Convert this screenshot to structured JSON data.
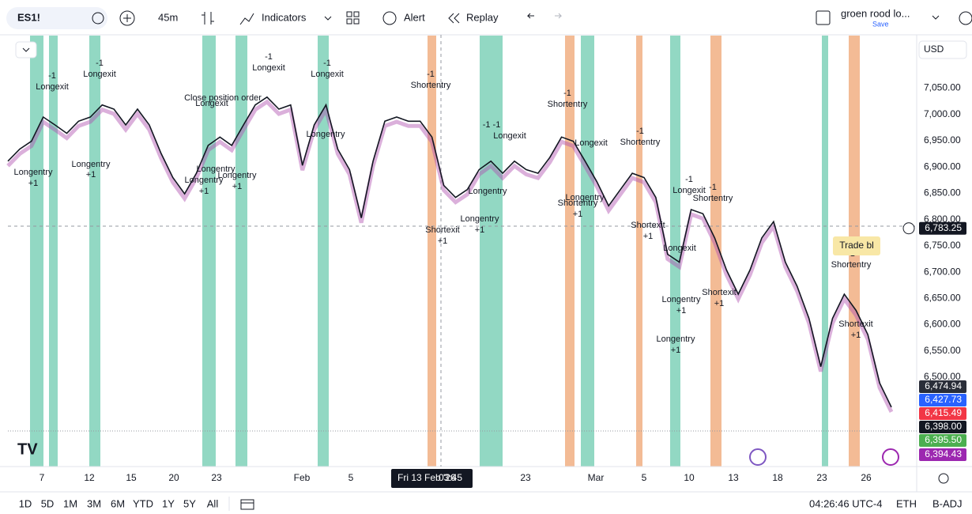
{
  "toolbar": {
    "symbol": "ES1!",
    "interval": "45m",
    "indicators": "Indicators",
    "alert": "Alert",
    "replay": "Replay",
    "layout_name": "groen rood lo...",
    "save": "Save",
    "currency": "USD"
  },
  "chart": {
    "ylim": [
      6330,
      7150
    ],
    "yticks": [
      {
        "value": 7050,
        "label": "7,050.00"
      },
      {
        "value": 7000,
        "label": "7,000.00"
      },
      {
        "value": 6950,
        "label": "6,950.00"
      },
      {
        "value": 6900,
        "label": "6,900.00"
      },
      {
        "value": 6850,
        "label": "6,850.00"
      },
      {
        "value": 6800,
        "label": "6,800.00"
      },
      {
        "value": 6750,
        "label": "6,750.00"
      },
      {
        "value": 6700,
        "label": "6,700.00"
      },
      {
        "value": 6650,
        "label": "6,650.00"
      },
      {
        "value": 6600,
        "label": "6,600.00"
      },
      {
        "value": 6550,
        "label": "6,550.00"
      },
      {
        "value": 6500,
        "label": "6,500.00"
      }
    ],
    "price": [
      6911,
      6934,
      6949,
      6995,
      6980,
      6964,
      6987,
      6995,
      7018,
      7010,
      6980,
      7010,
      6980,
      6926,
      6880,
      6849,
      6888,
      6941,
      6957,
      6941,
      6980,
      7018,
      7033,
      7010,
      7018,
      6903,
      6980,
      7018,
      6934,
      6895,
      6803,
      6911,
      6987,
      6995,
      6987,
      6987,
      6957,
      6865,
      6842,
      6857,
      6895,
      6911,
      6888,
      6911,
      6895,
      6888,
      6918,
      6957,
      6949,
      6911,
      6872,
      6826,
      6857,
      6888,
      6880,
      6842,
      6734,
      6719,
      6819,
      6811,
      6765,
      6704,
      6658,
      6704,
      6765,
      6796,
      6719,
      6673,
      6612,
      6520,
      6612,
      6658,
      6627,
      6581,
      6489,
      6443
    ],
    "x_labels": [
      "7",
      "12",
      "15",
      "20",
      "23",
      "Feb",
      "5",
      "23",
      "Mar",
      "5",
      "10",
      "13",
      "18",
      "23",
      "26"
    ],
    "cursor_date": "Fri 13 Feb '26",
    "cursor_time": "03:45",
    "annotations": [
      "Longentry",
      "+1",
      "-1",
      "Longexit",
      "Longentry",
      "+1",
      "-1",
      "Longexit",
      "Close position order",
      "Longexit",
      "Longentry",
      "Longentry",
      "+1",
      "Longentry",
      "+1",
      "-1",
      "Longexit",
      "-1",
      "Longexit",
      "Longentry",
      "-1",
      "Shortentry",
      "Shortexit",
      "+1",
      "Longentry",
      "Longentry",
      "+1",
      "Longexit",
      "-1 -1",
      "-1",
      "Shortentry",
      "Longentry",
      "Shortentry",
      "+1",
      "Longexit",
      "-1",
      "Shortentry",
      "Shortexit",
      "+1",
      "-1",
      "Longexit",
      "-1",
      "Shortentry",
      "Longexit",
      "Longentry",
      "+1",
      "Longentry",
      "+1",
      "Shortexit",
      "+1",
      "-1",
      "Shortentry",
      "Shortexit",
      "+1"
    ],
    "badge": "Trade bl",
    "price_tags": [
      {
        "value": 6783.25,
        "label": "6,783.25",
        "color": "#131722"
      },
      {
        "value": 6474.94,
        "label": "6,474.94",
        "color": "#2a2e39"
      },
      {
        "value": 6427.73,
        "label": "6,427.73",
        "color": "#2962ff"
      },
      {
        "value": 6415.49,
        "label": "6,415.49",
        "color": "#f23645"
      },
      {
        "value": 6398.0,
        "label": "6,398.00",
        "color": "#131722"
      },
      {
        "value": 6395.5,
        "label": "6,395.50",
        "color": "#4caf50"
      },
      {
        "value": 6394.43,
        "label": "6,394.43",
        "color": "#9c27b0"
      }
    ]
  },
  "bottom": {
    "ranges": [
      "1D",
      "5D",
      "1M",
      "3M",
      "6M",
      "YTD",
      "1Y",
      "5Y",
      "All"
    ],
    "clock": "04:26:46 UTC-4",
    "session": "ETH",
    "adjust": "B-ADJ"
  }
}
